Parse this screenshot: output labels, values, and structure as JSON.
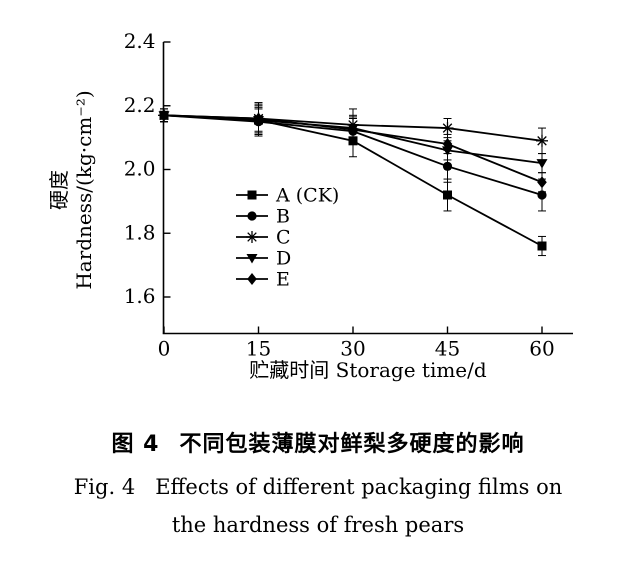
{
  "chart_data": {
    "type": "line",
    "title": "",
    "xlabel": "贮藏时间 Storage time/d",
    "ylabel_lines": [
      "硬度",
      "Hardness/(kg·cm⁻²)"
    ],
    "x": [
      0,
      15,
      30,
      45,
      60
    ],
    "x_tick_labels": [
      "0",
      "15",
      "30",
      "45",
      "60"
    ],
    "y_tick_labels": [
      "2.4",
      "2.2",
      "2.0",
      "1.8",
      "1.6"
    ],
    "ylim": [
      1.49,
      2.4
    ],
    "xlim": [
      0,
      65
    ],
    "grid": false,
    "legend_position": "inside-center-left",
    "line_color": "#000000",
    "series": [
      {
        "name": "A (CK)",
        "marker": "square",
        "values": [
          2.17,
          2.155,
          2.09,
          1.92,
          1.76
        ],
        "errors": [
          0.02,
          0.05,
          0.05,
          0.05,
          0.03
        ]
      },
      {
        "name": "B",
        "marker": "circle",
        "values": [
          2.17,
          2.15,
          2.12,
          2.01,
          1.92
        ],
        "errors": [
          0.02,
          0.04,
          0.04,
          0.05,
          0.05
        ]
      },
      {
        "name": "C",
        "marker": "star",
        "values": [
          2.17,
          2.16,
          2.14,
          2.13,
          2.09
        ],
        "errors": [
          0.02,
          0.05,
          0.05,
          0.03,
          0.04
        ]
      },
      {
        "name": "D",
        "marker": "triangle-down",
        "values": [
          2.17,
          2.155,
          2.13,
          2.06,
          2.02
        ],
        "errors": [
          0.02,
          0.04,
          0.04,
          0.03,
          0.03
        ]
      },
      {
        "name": "E",
        "marker": "diamond",
        "values": [
          2.17,
          2.16,
          2.125,
          2.08,
          1.96
        ],
        "errors": [
          0.02,
          0.04,
          0.04,
          0.03,
          0.03
        ]
      }
    ]
  },
  "caption": {
    "zh_prefix": "图 4",
    "zh_text": "不同包装薄膜对鲜梨多硬度的影响",
    "en_prefix": "Fig. 4",
    "en_line1": "Effects of different packaging films on",
    "en_line2": "the hardness of fresh pears"
  }
}
